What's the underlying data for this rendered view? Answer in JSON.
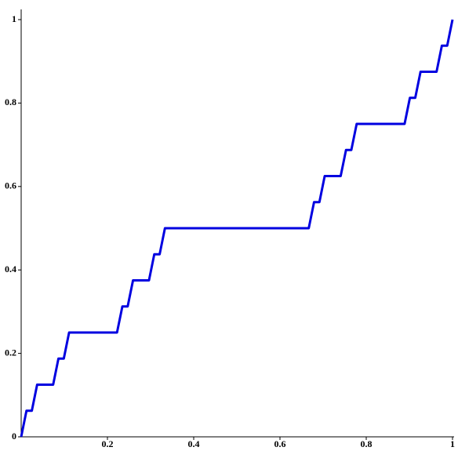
{
  "chart_data": {
    "type": "line",
    "x": [
      0,
      0.0123,
      0.0247,
      0.037,
      0.0741,
      0.0864,
      0.0988,
      0.1111,
      0.2222,
      0.2346,
      0.2469,
      0.2593,
      0.2963,
      0.3086,
      0.321,
      0.3333,
      0.6667,
      0.679,
      0.6914,
      0.7037,
      0.7407,
      0.7531,
      0.7654,
      0.7778,
      0.8889,
      0.9012,
      0.9136,
      0.9259,
      0.963,
      0.9753,
      0.9877,
      1
    ],
    "series": [
      {
        "color": "#0000e0",
        "values": [
          0,
          0.0625,
          0.0625,
          0.125,
          0.125,
          0.1875,
          0.1875,
          0.25,
          0.25,
          0.3125,
          0.3125,
          0.375,
          0.375,
          0.4375,
          0.4375,
          0.5,
          0.5,
          0.5625,
          0.5625,
          0.625,
          0.625,
          0.6875,
          0.6875,
          0.75,
          0.75,
          0.8125,
          0.8125,
          0.875,
          0.875,
          0.9375,
          0.9375,
          1
        ]
      }
    ],
    "xlim": [
      0,
      1
    ],
    "ylim": [
      0,
      1
    ],
    "xticks": [
      0.2,
      0.4,
      0.6,
      0.8,
      1
    ],
    "yticks": [
      0,
      0.2,
      0.4,
      0.6,
      0.8,
      1
    ]
  }
}
